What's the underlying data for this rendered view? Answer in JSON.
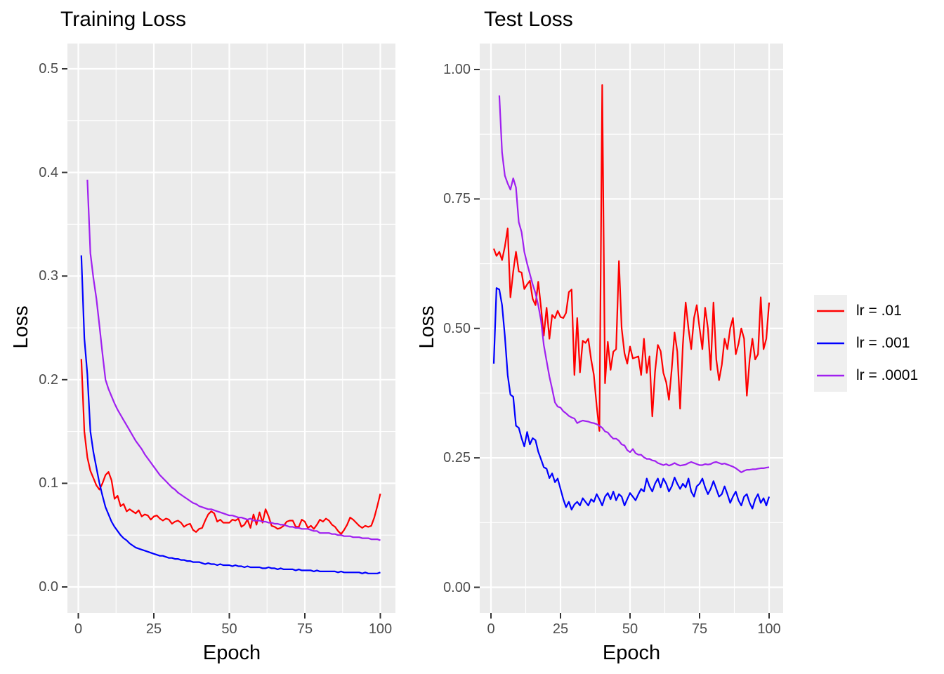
{
  "chart_data": {
    "type": "line",
    "x_label": "Epoch",
    "y_label": "Loss",
    "grid": true,
    "legend_position": "right",
    "colors": {
      "figure_bg": "#FFFFFF",
      "panel_bg": "#EBEBEB",
      "grid": "#FFFFFF",
      "tick_mark": "#333333",
      "tick_label": "#4D4D4D",
      "text": "#000000",
      "legend_key_bg": "#EFEFEF"
    },
    "legend": [
      {
        "label": "lr = .01",
        "color": "#FF0000"
      },
      {
        "label": "lr = .001",
        "color": "#0000FF"
      },
      {
        "label": "lr = .0001",
        "color": "#A020F0"
      }
    ],
    "epochs": [
      1,
      2,
      3,
      4,
      5,
      6,
      7,
      8,
      9,
      10,
      11,
      12,
      13,
      14,
      15,
      16,
      17,
      18,
      19,
      20,
      21,
      22,
      23,
      24,
      25,
      26,
      27,
      28,
      29,
      30,
      31,
      32,
      33,
      34,
      35,
      36,
      37,
      38,
      39,
      40,
      41,
      42,
      43,
      44,
      45,
      46,
      47,
      48,
      49,
      50,
      51,
      52,
      53,
      54,
      55,
      56,
      57,
      58,
      59,
      60,
      61,
      62,
      63,
      64,
      65,
      66,
      67,
      68,
      69,
      70,
      71,
      72,
      73,
      74,
      75,
      76,
      77,
      78,
      79,
      80,
      81,
      82,
      83,
      84,
      85,
      86,
      87,
      88,
      89,
      90,
      91,
      92,
      93,
      94,
      95,
      96,
      97,
      98,
      99,
      100
    ],
    "panels": [
      {
        "title": "Training Loss",
        "ylabel": "Loss",
        "xlabel": "Epoch",
        "ylim": [
          0.0,
          0.5
        ],
        "xlim": [
          0,
          100
        ],
        "y_ticks": [
          0.0,
          0.1,
          0.2,
          0.3,
          0.4,
          0.5
        ],
        "y_tick_labels": [
          "0.0",
          "0.1",
          "0.2",
          "0.3",
          "0.4",
          "0.5"
        ],
        "x_ticks": [
          0,
          25,
          50,
          75,
          100
        ],
        "x_tick_labels": [
          "0",
          "25",
          "50",
          "75",
          "100"
        ],
        "series": [
          {
            "name": "lr = .01",
            "color": "#FF0000",
            "values": [
              0.22,
              0.15,
              0.125,
              0.112,
              0.105,
              0.098,
              0.094,
              0.1,
              0.108,
              0.111,
              0.103,
              0.085,
              0.088,
              0.078,
              0.08,
              0.073,
              0.075,
              0.073,
              0.071,
              0.074,
              0.068,
              0.07,
              0.069,
              0.065,
              0.068,
              0.069,
              0.066,
              0.064,
              0.066,
              0.065,
              0.061,
              0.063,
              0.064,
              0.062,
              0.058,
              0.06,
              0.061,
              0.055,
              0.053,
              0.056,
              0.057,
              0.064,
              0.07,
              0.073,
              0.071,
              0.063,
              0.065,
              0.062,
              0.062,
              0.062,
              0.065,
              0.064,
              0.066,
              0.058,
              0.06,
              0.065,
              0.057,
              0.07,
              0.06,
              0.072,
              0.062,
              0.075,
              0.068,
              0.059,
              0.058,
              0.056,
              0.057,
              0.059,
              0.063,
              0.064,
              0.064,
              0.058,
              0.058,
              0.065,
              0.063,
              0.057,
              0.059,
              0.056,
              0.06,
              0.065,
              0.063,
              0.066,
              0.064,
              0.06,
              0.058,
              0.054,
              0.051,
              0.055,
              0.06,
              0.067,
              0.065,
              0.062,
              0.059,
              0.057,
              0.059,
              0.058,
              0.059,
              0.067,
              0.078,
              0.09
            ]
          },
          {
            "name": "lr = .001",
            "color": "#0000FF",
            "values": [
              0.32,
              0.24,
              0.205,
              0.15,
              0.13,
              0.115,
              0.1,
              0.088,
              0.077,
              0.07,
              0.063,
              0.058,
              0.054,
              0.05,
              0.047,
              0.045,
              0.042,
              0.04,
              0.038,
              0.037,
              0.036,
              0.035,
              0.034,
              0.033,
              0.032,
              0.031,
              0.03,
              0.03,
              0.029,
              0.028,
              0.028,
              0.027,
              0.027,
              0.026,
              0.026,
              0.025,
              0.025,
              0.024,
              0.024,
              0.024,
              0.023,
              0.022,
              0.023,
              0.022,
              0.022,
              0.021,
              0.022,
              0.021,
              0.021,
              0.021,
              0.02,
              0.021,
              0.02,
              0.02,
              0.019,
              0.02,
              0.019,
              0.019,
              0.019,
              0.019,
              0.018,
              0.018,
              0.019,
              0.018,
              0.018,
              0.017,
              0.018,
              0.017,
              0.017,
              0.017,
              0.017,
              0.016,
              0.017,
              0.016,
              0.016,
              0.016,
              0.016,
              0.015,
              0.016,
              0.015,
              0.015,
              0.015,
              0.015,
              0.015,
              0.015,
              0.014,
              0.015,
              0.014,
              0.014,
              0.014,
              0.014,
              0.014,
              0.014,
              0.013,
              0.014,
              0.013,
              0.013,
              0.013,
              0.013,
              0.014
            ]
          },
          {
            "name": "lr = .0001",
            "color": "#A020F0",
            "values": [
              null,
              null,
              0.393,
              0.322,
              0.298,
              0.278,
              0.252,
              0.225,
              0.2,
              0.191,
              0.184,
              0.177,
              0.171,
              0.166,
              0.161,
              0.156,
              0.151,
              0.146,
              0.141,
              0.137,
              0.133,
              0.128,
              0.124,
              0.12,
              0.116,
              0.112,
              0.108,
              0.105,
              0.102,
              0.099,
              0.096,
              0.094,
              0.091,
              0.089,
              0.087,
              0.085,
              0.083,
              0.081,
              0.08,
              0.078,
              0.077,
              0.076,
              0.075,
              0.075,
              0.074,
              0.073,
              0.072,
              0.071,
              0.07,
              0.069,
              0.069,
              0.068,
              0.067,
              0.067,
              0.066,
              0.065,
              0.066,
              0.064,
              0.064,
              0.064,
              0.063,
              0.063,
              0.062,
              0.062,
              0.061,
              0.061,
              0.06,
              0.06,
              0.059,
              0.058,
              0.058,
              0.057,
              0.057,
              0.056,
              0.056,
              0.056,
              0.055,
              0.054,
              0.054,
              0.052,
              0.052,
              0.052,
              0.052,
              0.051,
              0.051,
              0.05,
              0.05,
              0.049,
              0.049,
              0.049,
              0.048,
              0.048,
              0.048,
              0.047,
              0.047,
              0.047,
              0.046,
              0.046,
              0.046,
              0.045
            ]
          }
        ]
      },
      {
        "title": "Test Loss",
        "ylabel": "Loss",
        "xlabel": "Epoch",
        "ylim": [
          0.0,
          1.0
        ],
        "xlim": [
          0,
          100
        ],
        "y_ticks": [
          0.0,
          0.25,
          0.5,
          0.75,
          1.0
        ],
        "y_tick_labels": [
          "0.00",
          "0.25",
          "0.50",
          "0.75",
          "1.00"
        ],
        "x_ticks": [
          0,
          25,
          50,
          75,
          100
        ],
        "x_tick_labels": [
          "0",
          "25",
          "50",
          "75",
          "100"
        ],
        "series": [
          {
            "name": "lr = .01",
            "color": "#FF0000",
            "values": [
              0.654,
              0.64,
              0.648,
              0.632,
              0.658,
              0.693,
              0.56,
              0.61,
              0.648,
              0.61,
              0.608,
              0.576,
              0.585,
              0.592,
              0.557,
              0.545,
              0.59,
              0.54,
              0.486,
              0.54,
              0.48,
              0.526,
              0.52,
              0.534,
              0.522,
              0.52,
              0.53,
              0.57,
              0.575,
              0.41,
              0.52,
              0.415,
              0.476,
              0.472,
              0.48,
              0.44,
              0.41,
              0.35,
              0.302,
              0.97,
              0.394,
              0.474,
              0.42,
              0.455,
              0.46,
              0.63,
              0.5,
              0.452,
              0.432,
              0.465,
              0.442,
              0.444,
              0.446,
              0.41,
              0.48,
              0.414,
              0.446,
              0.33,
              0.416,
              0.468,
              0.456,
              0.414,
              0.396,
              0.362,
              0.422,
              0.492,
              0.455,
              0.345,
              0.468,
              0.55,
              0.5,
              0.46,
              0.52,
              0.545,
              0.5,
              0.46,
              0.54,
              0.5,
              0.42,
              0.55,
              0.44,
              0.4,
              0.43,
              0.48,
              0.46,
              0.5,
              0.52,
              0.45,
              0.47,
              0.5,
              0.48,
              0.37,
              0.44,
              0.48,
              0.44,
              0.45,
              0.56,
              0.46,
              0.48,
              0.55
            ]
          },
          {
            "name": "lr = .001",
            "color": "#0000FF",
            "values": [
              0.432,
              0.578,
              0.575,
              0.545,
              0.485,
              0.41,
              0.372,
              0.368,
              0.312,
              0.308,
              0.288,
              0.272,
              0.3,
              0.276,
              0.288,
              0.284,
              0.262,
              0.247,
              0.232,
              0.229,
              0.211,
              0.22,
              0.203,
              0.21,
              0.19,
              0.17,
              0.155,
              0.165,
              0.15,
              0.16,
              0.165,
              0.158,
              0.172,
              0.165,
              0.158,
              0.17,
              0.165,
              0.18,
              0.17,
              0.158,
              0.175,
              0.182,
              0.17,
              0.185,
              0.168,
              0.18,
              0.175,
              0.158,
              0.17,
              0.182,
              0.175,
              0.168,
              0.18,
              0.19,
              0.185,
              0.21,
              0.195,
              0.185,
              0.2,
              0.21,
              0.193,
              0.21,
              0.2,
              0.185,
              0.195,
              0.212,
              0.2,
              0.19,
              0.2,
              0.193,
              0.21,
              0.185,
              0.175,
              0.195,
              0.2,
              0.21,
              0.193,
              0.18,
              0.19,
              0.205,
              0.19,
              0.175,
              0.18,
              0.195,
              0.18,
              0.163,
              0.175,
              0.185,
              0.168,
              0.158,
              0.175,
              0.18,
              0.163,
              0.152,
              0.17,
              0.18,
              0.163,
              0.172,
              0.158,
              0.175
            ]
          },
          {
            "name": "lr = .0001",
            "color": "#A020F0",
            "values": [
              null,
              null,
              0.95,
              0.84,
              0.795,
              0.78,
              0.768,
              0.79,
              0.772,
              0.705,
              0.686,
              0.648,
              0.625,
              0.605,
              0.585,
              0.568,
              0.545,
              0.515,
              0.468,
              0.437,
              0.407,
              0.383,
              0.357,
              0.349,
              0.347,
              0.34,
              0.336,
              0.331,
              0.328,
              0.326,
              0.317,
              0.32,
              0.322,
              0.321,
              0.32,
              0.318,
              0.317,
              0.315,
              0.312,
              0.308,
              0.301,
              0.299,
              0.292,
              0.287,
              0.287,
              0.283,
              0.276,
              0.274,
              0.265,
              0.261,
              0.267,
              0.259,
              0.256,
              0.256,
              0.251,
              0.248,
              0.248,
              0.245,
              0.244,
              0.24,
              0.238,
              0.236,
              0.238,
              0.235,
              0.237,
              0.24,
              0.237,
              0.235,
              0.236,
              0.237,
              0.24,
              0.242,
              0.24,
              0.238,
              0.236,
              0.236,
              0.238,
              0.237,
              0.238,
              0.241,
              0.242,
              0.24,
              0.238,
              0.239,
              0.237,
              0.235,
              0.233,
              0.23,
              0.226,
              0.222,
              0.225,
              0.227,
              0.227,
              0.228,
              0.228,
              0.229,
              0.23,
              0.23,
              0.231,
              0.232
            ]
          }
        ]
      }
    ]
  }
}
